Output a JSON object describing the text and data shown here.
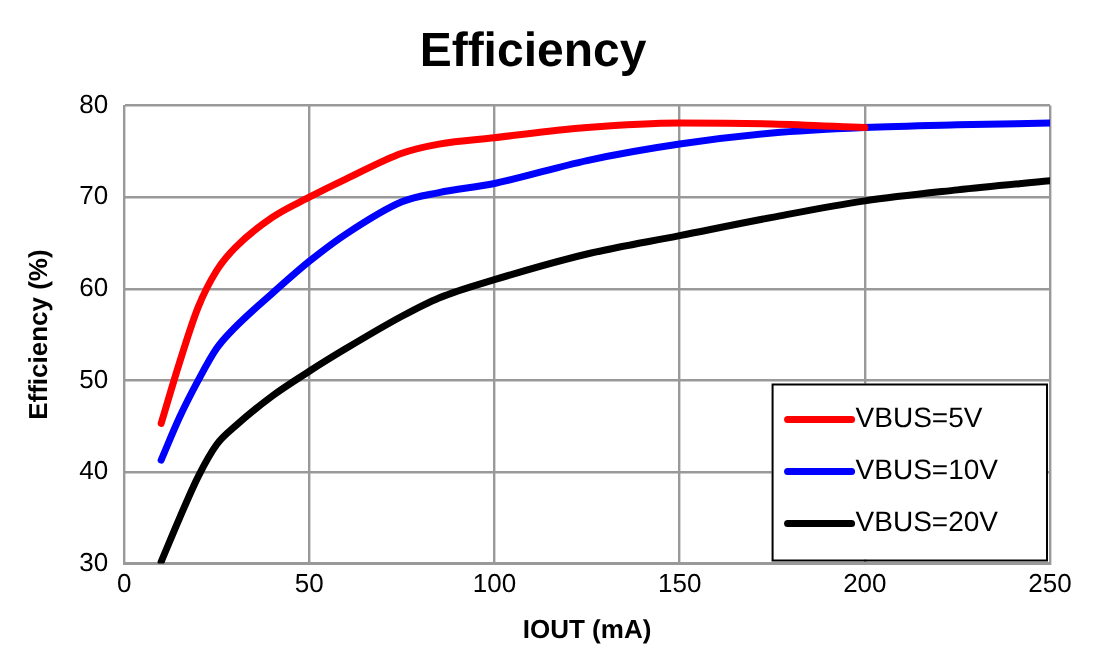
{
  "chart_data": {
    "type": "line",
    "title": "Efficiency",
    "xlabel": "IOUT (mA)",
    "ylabel": "Efficiency (%)",
    "xlim": [
      0,
      250
    ],
    "xticks": [
      0,
      50,
      100,
      150,
      200,
      250
    ],
    "ylim": [
      30,
      80
    ],
    "yticks": [
      30,
      40,
      50,
      60,
      70,
      80
    ],
    "grid": true,
    "legend": "bottom right",
    "marker": "none",
    "line_style": "solid",
    "series": [
      {
        "name": "VBUS=5V",
        "color": "#ff0000",
        "x": [
          10,
          15,
          20,
          25,
          30,
          40,
          50,
          60,
          75,
          85,
          100,
          125,
          150,
          175,
          200
        ],
        "values": [
          45.3,
          52,
          58,
          62,
          64.5,
          67.8,
          70,
          72,
          74.8,
          75.8,
          76.5,
          77.6,
          78.1,
          78,
          77.6
        ]
      },
      {
        "name": "VBUS=10V",
        "color": "#0000ff",
        "x": [
          10,
          15,
          20,
          25,
          30,
          40,
          50,
          60,
          75,
          85,
          100,
          125,
          150,
          175,
          200,
          225,
          250
        ],
        "values": [
          41.3,
          46,
          50,
          53.5,
          55.8,
          59.5,
          63,
          66,
          69.5,
          70.5,
          71.5,
          74,
          75.8,
          77,
          77.6,
          77.9,
          78.1
        ]
      },
      {
        "name": "VBUS=20V",
        "color": "#000000",
        "x": [
          10,
          15,
          20,
          25,
          30,
          40,
          50,
          60,
          75,
          85,
          100,
          125,
          150,
          175,
          200,
          225,
          250
        ],
        "values": [
          30.2,
          35,
          39.5,
          43,
          45,
          48.3,
          51,
          53.5,
          57,
          59,
          61,
          63.8,
          65.8,
          67.8,
          69.6,
          70.8,
          71.8
        ]
      }
    ]
  }
}
